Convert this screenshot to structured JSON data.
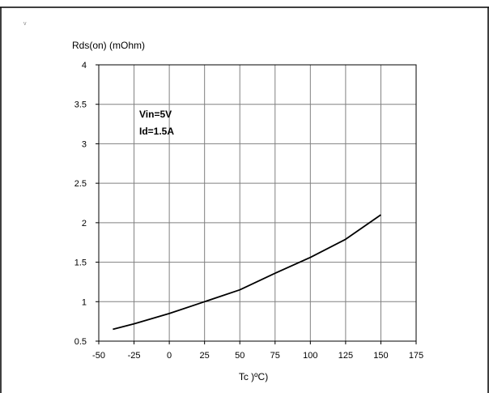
{
  "chart_data": {
    "type": "line",
    "ylabel": "Rds(on) (mOhm)",
    "xlabel": "Tc )ºC)",
    "xlim": [
      -50,
      175
    ],
    "ylim": [
      0.5,
      4
    ],
    "x_ticks": [
      -50,
      -25,
      0,
      25,
      50,
      75,
      100,
      125,
      150,
      175
    ],
    "y_ticks": [
      0.5,
      1,
      1.5,
      2,
      2.5,
      3,
      3.5,
      4
    ],
    "x_tick_labels": [
      "-50",
      "-25",
      "0",
      "25",
      "50",
      "75",
      "100",
      "125",
      "150",
      "175"
    ],
    "y_tick_labels": [
      "0.5",
      "1",
      "1.5",
      "2",
      "2.5",
      "3",
      "3.5",
      "4"
    ],
    "grid": true,
    "annotations": [
      "Vin=5V",
      "Id=1.5A"
    ],
    "series": [
      {
        "x": [
          -40,
          -25,
          0,
          25,
          50,
          75,
          100,
          125,
          150
        ],
        "y": [
          0.65,
          0.72,
          0.85,
          1.0,
          1.15,
          1.36,
          1.56,
          1.79,
          2.1
        ],
        "color": "#000000"
      }
    ]
  },
  "corner_mark": "v"
}
